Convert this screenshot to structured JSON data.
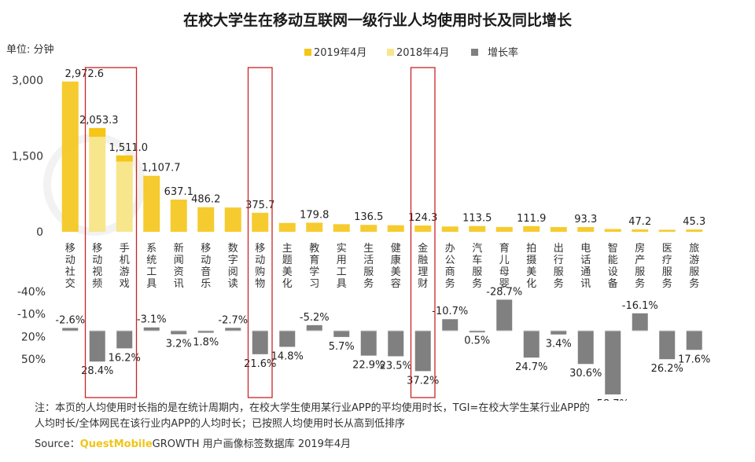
{
  "title": "在校大学生在移动互联网一级行业人均使用时长及同比增长",
  "unit_label": "单位: 分钟",
  "legend": [
    "2019年4月",
    "2018年4月",
    "增长率"
  ],
  "colors": {
    "y2019": "#f5c518",
    "y2018": "#f7e68c",
    "growth": "#808080",
    "highlight": "#cc2222"
  },
  "chart_data": {
    "type": "bar",
    "categories": [
      "移动社交",
      "移动视频",
      "手机游戏",
      "系统工具",
      "新闻资讯",
      "移动音乐",
      "数字阅读",
      "移动购物",
      "主题美化",
      "教育学习",
      "实用工具",
      "生活服务",
      "健康美容",
      "金融理财",
      "办公商务",
      "汽车服务",
      "育儿母婴",
      "拍摄美化",
      "出行服务",
      "电话通讯",
      "智能设备",
      "房产服务",
      "医疗服务",
      "旅游服务"
    ],
    "series": [
      {
        "name": "2019年4月",
        "values": [
          2972.6,
          2053.3,
          1511.0,
          1107.7,
          637.1,
          486.2,
          480,
          375.7,
          175,
          179.8,
          150,
          136.5,
          130,
          124.3,
          105,
          113.5,
          95,
          111.9,
          93,
          93.3,
          55,
          47.2,
          40,
          45.3
        ]
      },
      {
        "name": "增长率",
        "values": [
          -2.6,
          28.4,
          16.2,
          -3.1,
          3.2,
          1.8,
          -2.7,
          21.6,
          14.8,
          -5.2,
          5.7,
          22.9,
          23.5,
          37.2,
          -10.7,
          0.5,
          -28.7,
          24.7,
          3.4,
          30.6,
          58.7,
          -16.1,
          26.2,
          17.6
        ]
      }
    ],
    "value_labels": [
      {
        "index": 0,
        "text": "2,972.6"
      },
      {
        "index": 1,
        "text": "2,053.3"
      },
      {
        "index": 2,
        "text": "1,511.0"
      },
      {
        "index": 3,
        "text": "1,107.7"
      },
      {
        "index": 4,
        "text": "637.1"
      },
      {
        "index": 5,
        "text": "486.2"
      },
      {
        "index": 7,
        "text": "375.7"
      },
      {
        "index": 9,
        "text": "179.8"
      },
      {
        "index": 11,
        "text": "136.5"
      },
      {
        "index": 13,
        "text": "124.3"
      },
      {
        "index": 15,
        "text": "113.5"
      },
      {
        "index": 17,
        "text": "111.9"
      },
      {
        "index": 19,
        "text": "93.3"
      },
      {
        "index": 21,
        "text": "47.2"
      },
      {
        "index": 23,
        "text": "45.3"
      }
    ],
    "growth_labels": [
      "-2.6%",
      "28.4%",
      "16.2%",
      "-3.1%",
      "3.2%",
      "1.8%",
      "-2.7%",
      "21.6%",
      "14.8%",
      "-5.2%",
      "5.7%",
      "22.9%",
      "23.5%",
      "37.2%",
      "-10.7%",
      "0.5%",
      "-28.7%",
      "24.7%",
      "3.4%",
      "30.6%",
      "58.7%",
      "-16.1%",
      "26.2%",
      "17.6%"
    ],
    "y_ticks": [
      "3,000",
      "1,500",
      "0"
    ],
    "y2_ticks": [
      "-40%",
      "-10%",
      "20%",
      "50%"
    ],
    "ylim": [
      0,
      3000
    ],
    "y2lim": [
      -40,
      70
    ],
    "highlight_indices": [
      1,
      2,
      7,
      13
    ]
  },
  "notes": {
    "line1": "注：本页的人均使用时长指的是在统计周期内，在校大学生使用某行业APP的平均使用时长，TGI=在校大学生某行业APP的",
    "line2": "人均时长/全体网民在该行业内APP的人均时长；已按照人均使用时长从高到低排序",
    "source_prefix": "Source：",
    "source_brand": "QuestMobile",
    "source_suffix": "GROWTH 用户画像标签数据库 2019年4月"
  }
}
